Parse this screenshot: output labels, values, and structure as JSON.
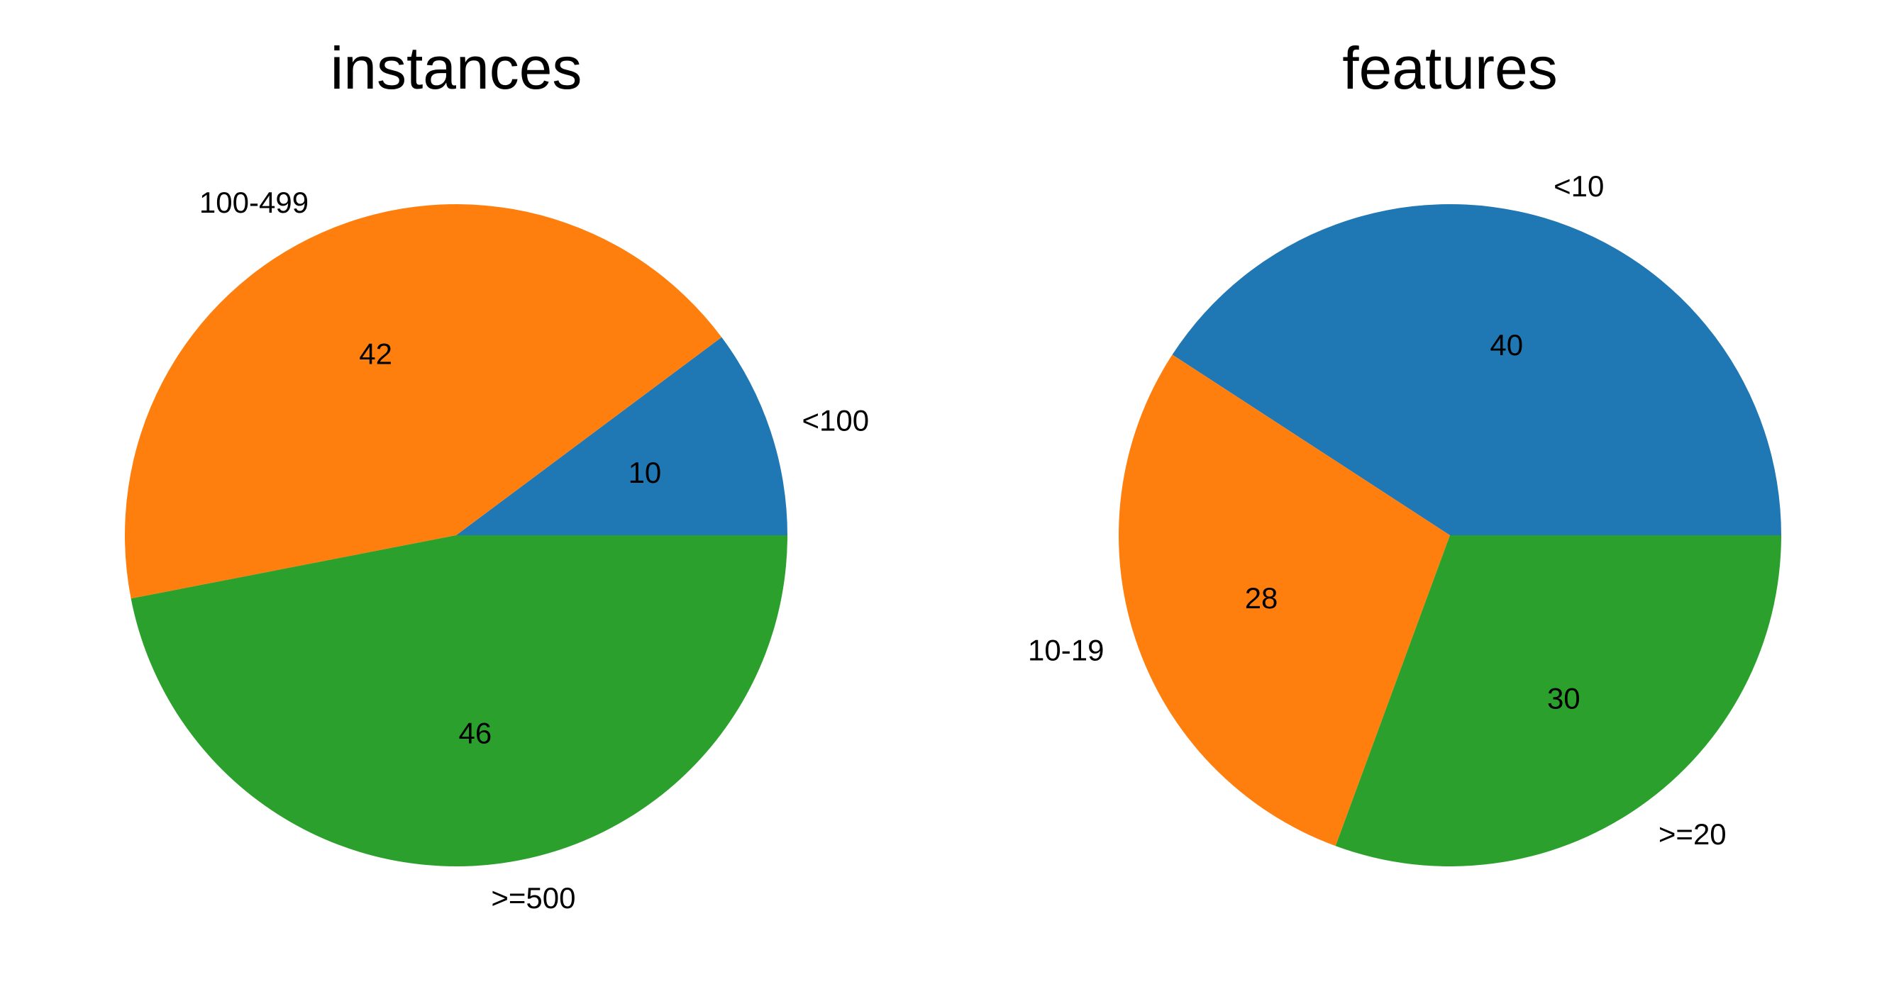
{
  "chart_data": [
    {
      "type": "pie",
      "title": "instances",
      "categories": [
        "<100",
        "100-499",
        ">=500"
      ],
      "values": [
        10,
        42,
        46
      ],
      "colors": [
        "#1f77b4",
        "#ff7f0e",
        "#2ca02c"
      ],
      "start_angle_deg": 0,
      "direction": "counterclockwise"
    },
    {
      "type": "pie",
      "title": "features",
      "categories": [
        "<10",
        "10-19",
        ">=20"
      ],
      "values": [
        40,
        28,
        30
      ],
      "colors": [
        "#1f77b4",
        "#ff7f0e",
        "#2ca02c"
      ],
      "start_angle_deg": 0,
      "direction": "counterclockwise"
    }
  ]
}
